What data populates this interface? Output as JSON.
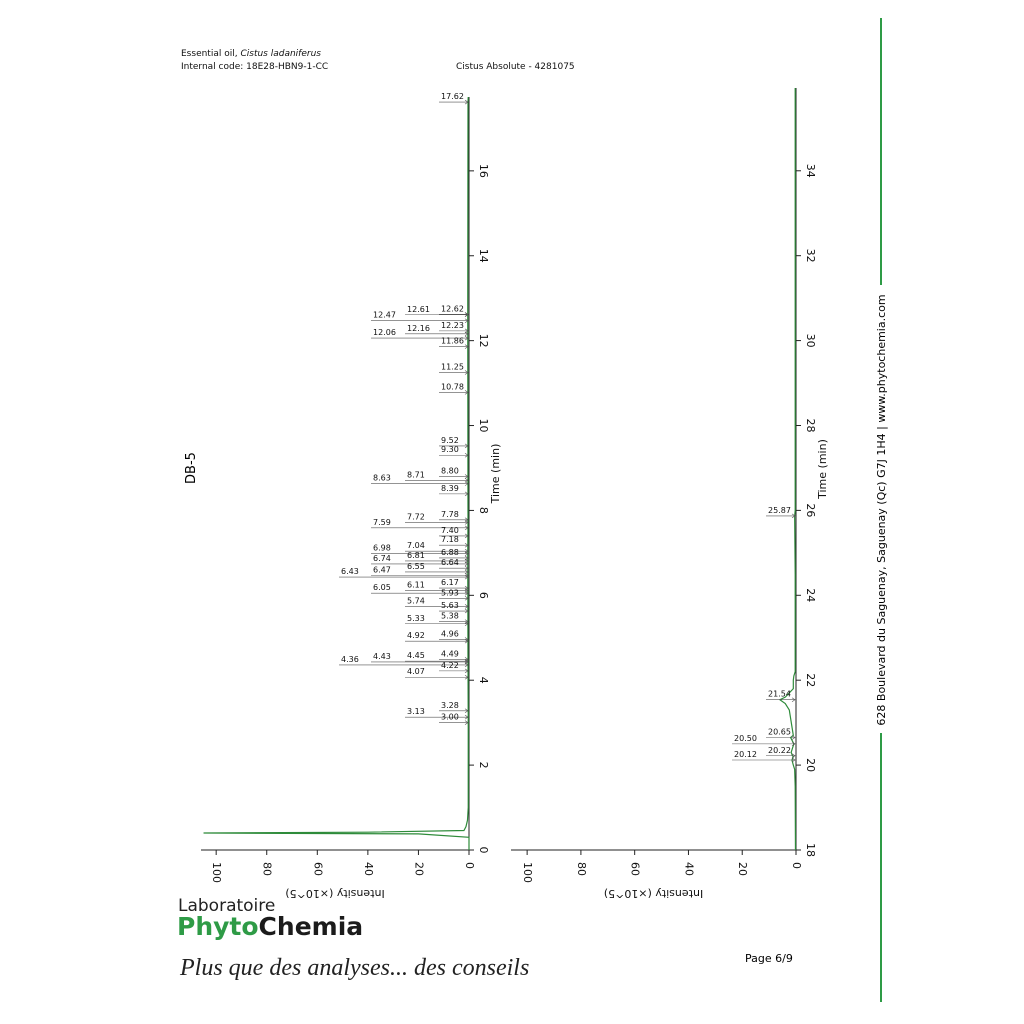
{
  "header": {
    "line1": "Essential oil,",
    "species": "Cistus ladaniferus",
    "code": "Internal code: 18E28-HBN9-1-CC",
    "sample": "Cistus Absolute - 4281075"
  },
  "column": "DB-5",
  "sidebar": "628 Boulevard du Saguenay, Saguenay (Qc)  G7J 1H4  |  www.phytochemia.com",
  "logo": {
    "top": "Laboratoire",
    "green": "Phyto",
    "dark": "Chemia"
  },
  "slogan": "Plus que des analyses... des conseils",
  "page": "Page 6/9",
  "chart_data": [
    {
      "type": "line",
      "x_label": "Time (min)",
      "y_label": "Intensity (×10^5)",
      "xlim": [
        0,
        17.74
      ],
      "xticks": [
        0,
        2,
        4,
        6,
        8,
        10,
        12,
        14,
        16
      ],
      "ylim": [
        0,
        106
      ],
      "yticks": [
        0,
        20,
        40,
        60,
        80,
        100
      ],
      "series": [
        {
          "name": "DB-5",
          "color": "#2e8b3a",
          "x": [
            0,
            0.3,
            0.38,
            0.4,
            0.42,
            0.46,
            0.55,
            0.7,
            1.0,
            3.0,
            4.4,
            6.9,
            7.8,
            12.5,
            17.62,
            17.74
          ],
          "values": [
            0,
            0,
            20,
            105,
            40,
            2,
            1.2,
            0.6,
            0.3,
            0.3,
            0.4,
            0.5,
            0.4,
            0.5,
            0.4,
            0.3
          ]
        }
      ],
      "peaks": [
        17.62,
        12.62,
        12.61,
        12.47,
        12.23,
        12.16,
        12.06,
        11.86,
        11.25,
        10.78,
        9.52,
        9.3,
        8.8,
        8.71,
        8.63,
        8.39,
        7.78,
        7.72,
        7.59,
        7.4,
        7.18,
        7.04,
        6.98,
        6.88,
        6.81,
        6.74,
        6.64,
        6.55,
        6.47,
        6.43,
        6.17,
        6.11,
        6.05,
        5.93,
        5.74,
        5.63,
        5.38,
        5.33,
        4.96,
        4.92,
        4.49,
        4.45,
        4.43,
        4.36,
        4.22,
        4.07,
        3.28,
        3.13,
        3.0
      ],
      "peak_labels": [
        "17.62",
        "12.62",
        "12.61",
        "12.47",
        "12.23",
        "12.16",
        "12.06",
        "11.86",
        "11.25",
        "10.78",
        "9.52",
        "9.30",
        "8.80",
        "8.71",
        "8.63",
        "8.39",
        "7.78",
        "7.72",
        "7.59",
        "7.40",
        "7.18",
        "7.04",
        "6.98",
        "6.88",
        "6.81",
        "6.74",
        "6.64",
        "6.55",
        "6.47",
        "6.43",
        "6.17",
        "6.11",
        "6.05",
        "5.93",
        "5.74",
        "5.63",
        "5.38",
        "5.33",
        "4.96",
        "4.92",
        "4.49",
        "4.45",
        "4.43",
        "4.36",
        "4.22",
        "4.07",
        "3.28",
        "3.13",
        "3.00"
      ]
    },
    {
      "type": "line",
      "x_label": "Time (min)",
      "y_label": "Intensity (×10^5)",
      "xlim": [
        18,
        35.95
      ],
      "xticks": [
        18,
        20,
        22,
        24,
        26,
        28,
        30,
        32,
        34
      ],
      "ylim": [
        0,
        106
      ],
      "yticks": [
        0,
        20,
        40,
        60,
        80,
        100
      ],
      "series": [
        {
          "name": "DB-5",
          "color": "#2e8b3a",
          "x": [
            18,
            19.5,
            19.9,
            20.0,
            20.12,
            20.2,
            20.22,
            20.3,
            20.5,
            20.55,
            20.65,
            20.7,
            21.3,
            21.45,
            21.54,
            21.6,
            21.8,
            22.0,
            22.1,
            22.2,
            24.5,
            25.87,
            26,
            28,
            35.95
          ],
          "values": [
            0.2,
            0.3,
            0.5,
            1,
            1.5,
            1,
            1.3,
            1.8,
            0.8,
            1.2,
            2,
            1,
            2.5,
            4,
            6,
            4,
            1,
            1,
            0.8,
            0.3,
            0.3,
            0.5,
            0.3,
            0.3,
            0.3
          ]
        }
      ],
      "peaks": [
        25.87,
        21.54,
        20.65,
        20.5,
        20.22,
        20.12
      ],
      "peak_labels": [
        "25.87",
        "21.54",
        "20.65",
        "20.50",
        "20.22",
        "20.12"
      ]
    }
  ]
}
